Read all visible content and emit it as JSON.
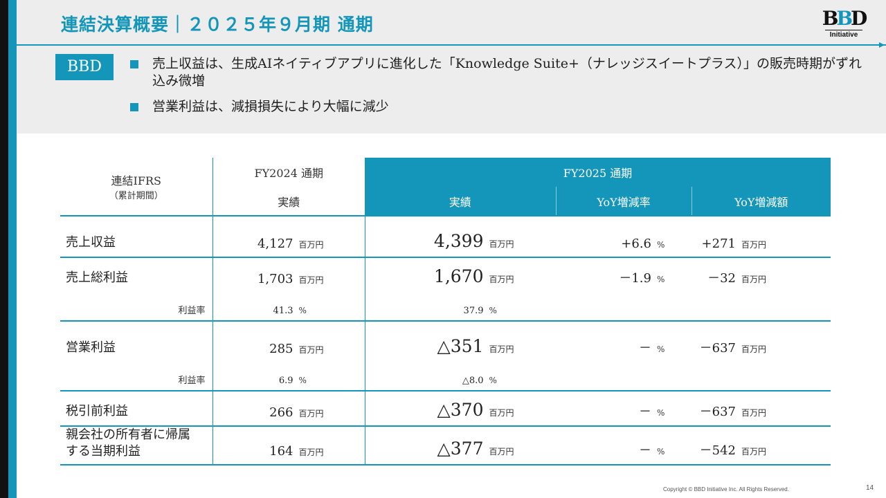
{
  "header": {
    "title": "連結決算概要｜２０２５年９月期 通期",
    "logo_text": "BBD",
    "logo_sub": "Initiative"
  },
  "summary": {
    "badge": "BBD",
    "bullets": [
      "売上収益は、生成AIネイティブアプリに進化した「Knowledge Suite+（ナレッジスイートプラス）」の販売時期がずれ込み微増",
      "営業利益は、減損損失により大幅に減少"
    ]
  },
  "table": {
    "header_label": "連結IFRS",
    "header_sublabel": "（累計期間）",
    "fy2024_label": "FY2024 通期",
    "fy2025_label": "FY2025 通期",
    "col_actual": "実績",
    "col_yoy_rate": "YoY増減率",
    "col_yoy_amount": "YoY増減額",
    "unit_million": "百万円",
    "unit_percent": "%",
    "rows": [
      {
        "label": "売上収益",
        "fy2024": "4,127",
        "fy2025": "4,399",
        "yoy_rate": "+6.6",
        "yoy_amount": "+271"
      },
      {
        "label": "売上総利益",
        "fy2024": "1,703",
        "fy2025": "1,670",
        "yoy_rate": "－1.9",
        "yoy_amount": "－32",
        "margin_label": "利益率",
        "margin_fy2024": "41.3",
        "margin_fy2025": "37.9"
      },
      {
        "label": "営業利益",
        "fy2024": "285",
        "fy2025": "△351",
        "yoy_rate": "－",
        "yoy_amount": "－637",
        "margin_label": "利益率",
        "margin_fy2024": "6.9",
        "margin_fy2025": "△8.0"
      },
      {
        "label": "税引前利益",
        "fy2024": "266",
        "fy2025": "△370",
        "yoy_rate": "－",
        "yoy_amount": "－637"
      },
      {
        "label_line1": "親会社の所有者に帰属",
        "label_line2": "する当期利益",
        "fy2024": "164",
        "fy2025": "△377",
        "yoy_rate": "－",
        "yoy_amount": "－542"
      }
    ]
  },
  "footer": {
    "copyright": "Copyright © BBD Initiative Inc. All Rights Reserved.",
    "page": "14"
  },
  "colors": {
    "accent": "#1396b9",
    "band": "#ededed"
  }
}
